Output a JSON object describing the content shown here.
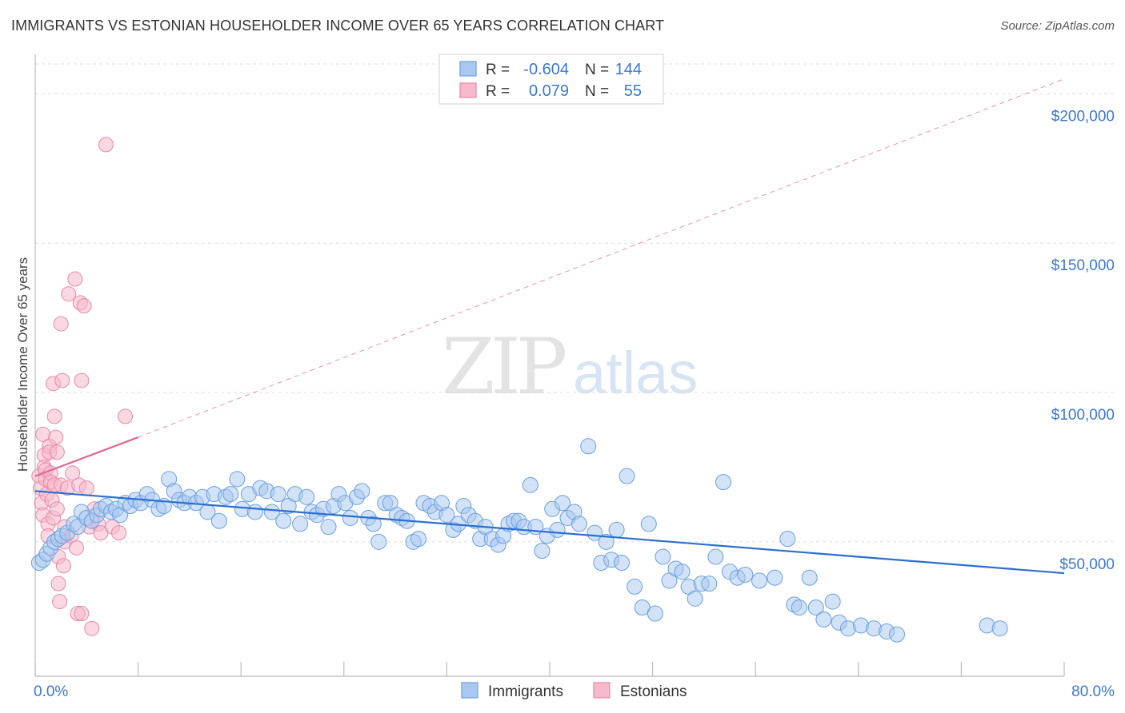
{
  "header": {
    "title": "IMMIGRANTS VS ESTONIAN HOUSEHOLDER INCOME OVER 65 YEARS CORRELATION CHART",
    "source": "Source: ZipAtlas.com"
  },
  "watermark": {
    "zip": "ZIP",
    "atlas": "atlas"
  },
  "legend_box": {
    "rows": [
      {
        "r_label": "R =",
        "r_value": "-0.604",
        "n_label": "N =",
        "n_value": "144"
      },
      {
        "r_label": "R =",
        "r_value": "0.079",
        "n_label": "N =",
        "n_value": "55"
      }
    ]
  },
  "bottom_legend": {
    "items": [
      "Immigrants",
      "Estonians"
    ]
  },
  "colors": {
    "immigrants_fill": "#a8c8f0",
    "immigrants_stroke": "#6a9fe0",
    "immigrants_line": "#2a6fd0",
    "estonians_fill": "#f6b8cb",
    "estonians_stroke": "#e888a8",
    "estonians_line": "#e06690",
    "axis_text": "#3a78d0",
    "grid": "#dddddd"
  },
  "chart_data": {
    "type": "scatter",
    "title": "IMMIGRANTS VS ESTONIAN HOUSEHOLDER INCOME OVER 65 YEARS CORRELATION CHART",
    "xlabel": "",
    "ylabel": "Householder Income Over 65 years",
    "xlim": [
      0,
      80
    ],
    "ylim": [
      5000,
      210000
    ],
    "x_tick_labels": [
      "0.0%",
      "80.0%"
    ],
    "y_ticks": [
      50000,
      100000,
      150000,
      200000
    ],
    "y_tick_labels": [
      "$50,000",
      "$100,000",
      "$150,000",
      "$200,000"
    ],
    "grid": true,
    "legend_position": "top-center",
    "series": [
      {
        "name": "Immigrants",
        "R": -0.604,
        "N": 144,
        "trend": {
          "x": [
            0,
            80
          ],
          "y": [
            67000,
            39500
          ]
        },
        "points": [
          [
            0.3,
            43000
          ],
          [
            0.6,
            44000
          ],
          [
            0.9,
            46000
          ],
          [
            1.2,
            48000
          ],
          [
            1.5,
            50000
          ],
          [
            1.8,
            51000
          ],
          [
            2.1,
            52000
          ],
          [
            2.5,
            53000
          ],
          [
            3.0,
            56000
          ],
          [
            3.3,
            55000
          ],
          [
            3.6,
            60000
          ],
          [
            4.0,
            58000
          ],
          [
            4.4,
            57000
          ],
          [
            4.8,
            59000
          ],
          [
            5.1,
            61000
          ],
          [
            5.5,
            62000
          ],
          [
            5.9,
            60000
          ],
          [
            6.3,
            61000
          ],
          [
            6.6,
            59000
          ],
          [
            7.0,
            63000
          ],
          [
            7.4,
            62000
          ],
          [
            7.8,
            64000
          ],
          [
            8.2,
            63000
          ],
          [
            8.7,
            66000
          ],
          [
            9.1,
            64000
          ],
          [
            9.6,
            61000
          ],
          [
            10.0,
            62000
          ],
          [
            10.4,
            71000
          ],
          [
            10.8,
            67000
          ],
          [
            11.2,
            64000
          ],
          [
            11.6,
            63000
          ],
          [
            12.0,
            65000
          ],
          [
            12.5,
            63000
          ],
          [
            13.0,
            65000
          ],
          [
            13.4,
            60000
          ],
          [
            13.9,
            66000
          ],
          [
            14.3,
            57000
          ],
          [
            14.8,
            65000
          ],
          [
            15.2,
            66000
          ],
          [
            15.7,
            71000
          ],
          [
            16.1,
            61000
          ],
          [
            16.6,
            66000
          ],
          [
            17.1,
            60000
          ],
          [
            17.5,
            68000
          ],
          [
            18.0,
            67000
          ],
          [
            18.4,
            60000
          ],
          [
            18.9,
            66000
          ],
          [
            19.3,
            57000
          ],
          [
            19.7,
            62000
          ],
          [
            20.2,
            66000
          ],
          [
            20.6,
            56000
          ],
          [
            21.1,
            65000
          ],
          [
            21.5,
            60000
          ],
          [
            21.9,
            59000
          ],
          [
            22.4,
            61000
          ],
          [
            22.8,
            55000
          ],
          [
            23.2,
            62000
          ],
          [
            23.6,
            66000
          ],
          [
            24.1,
            63000
          ],
          [
            24.5,
            58000
          ],
          [
            25.0,
            65000
          ],
          [
            25.4,
            67000
          ],
          [
            25.9,
            58000
          ],
          [
            26.3,
            56000
          ],
          [
            26.7,
            50000
          ],
          [
            27.2,
            63000
          ],
          [
            27.6,
            63000
          ],
          [
            28.1,
            59000
          ],
          [
            28.5,
            58000
          ],
          [
            28.9,
            57000
          ],
          [
            29.4,
            50000
          ],
          [
            29.8,
            51000
          ],
          [
            30.2,
            63000
          ],
          [
            30.7,
            62000
          ],
          [
            31.1,
            60000
          ],
          [
            31.6,
            63000
          ],
          [
            32.0,
            59000
          ],
          [
            32.5,
            54000
          ],
          [
            32.9,
            56000
          ],
          [
            33.3,
            62000
          ],
          [
            33.7,
            59000
          ],
          [
            34.2,
            57000
          ],
          [
            34.6,
            51000
          ],
          [
            35.0,
            55000
          ],
          [
            35.5,
            51000
          ],
          [
            36.0,
            49000
          ],
          [
            36.4,
            52000
          ],
          [
            36.8,
            56000
          ],
          [
            37.2,
            57000
          ],
          [
            37.6,
            57000
          ],
          [
            38.0,
            55000
          ],
          [
            38.5,
            69000
          ],
          [
            38.9,
            55000
          ],
          [
            39.4,
            47000
          ],
          [
            39.8,
            52000
          ],
          [
            40.2,
            61000
          ],
          [
            40.6,
            54000
          ],
          [
            41.0,
            63000
          ],
          [
            41.4,
            58000
          ],
          [
            41.9,
            60000
          ],
          [
            42.3,
            56000
          ],
          [
            43.0,
            82000
          ],
          [
            43.5,
            53000
          ],
          [
            44.0,
            43000
          ],
          [
            44.4,
            50000
          ],
          [
            44.8,
            44000
          ],
          [
            45.2,
            54000
          ],
          [
            45.6,
            43000
          ],
          [
            46.0,
            72000
          ],
          [
            46.6,
            35000
          ],
          [
            47.2,
            28000
          ],
          [
            47.7,
            56000
          ],
          [
            48.2,
            26000
          ],
          [
            48.8,
            45000
          ],
          [
            49.3,
            37000
          ],
          [
            49.8,
            41000
          ],
          [
            50.3,
            40000
          ],
          [
            50.8,
            35000
          ],
          [
            51.3,
            31000
          ],
          [
            51.8,
            36000
          ],
          [
            52.4,
            36000
          ],
          [
            52.9,
            45000
          ],
          [
            53.5,
            70000
          ],
          [
            54.0,
            40000
          ],
          [
            54.6,
            38000
          ],
          [
            55.2,
            39000
          ],
          [
            56.3,
            37000
          ],
          [
            57.5,
            38000
          ],
          [
            58.5,
            51000
          ],
          [
            59.0,
            29000
          ],
          [
            59.4,
            28000
          ],
          [
            60.2,
            38000
          ],
          [
            60.7,
            28000
          ],
          [
            61.3,
            24000
          ],
          [
            62.0,
            30000
          ],
          [
            62.5,
            23000
          ],
          [
            63.2,
            21000
          ],
          [
            64.2,
            22000
          ],
          [
            65.2,
            21000
          ],
          [
            66.2,
            20000
          ],
          [
            67.0,
            19000
          ],
          [
            74.0,
            22000
          ],
          [
            75.0,
            21000
          ]
        ]
      },
      {
        "name": "Estonians",
        "R": 0.079,
        "N": 55,
        "trend": {
          "x": [
            0,
            8
          ],
          "y": [
            72000,
            85000
          ]
        },
        "trend_dashed": {
          "x": [
            8,
            80
          ],
          "y": [
            85000,
            205000
          ]
        },
        "points": [
          [
            0.3,
            72000
          ],
          [
            0.4,
            68000
          ],
          [
            0.5,
            63000
          ],
          [
            0.6,
            59000
          ],
          [
            0.6,
            86000
          ],
          [
            0.7,
            79000
          ],
          [
            0.7,
            75000
          ],
          [
            0.8,
            74000
          ],
          [
            0.8,
            71000
          ],
          [
            0.9,
            66000
          ],
          [
            1.0,
            56000
          ],
          [
            1.0,
            52000
          ],
          [
            1.1,
            82000
          ],
          [
            1.1,
            80000
          ],
          [
            1.2,
            73000
          ],
          [
            1.2,
            70000
          ],
          [
            1.3,
            64000
          ],
          [
            1.4,
            58000
          ],
          [
            1.4,
            103000
          ],
          [
            1.5,
            69000
          ],
          [
            1.5,
            92000
          ],
          [
            1.6,
            85000
          ],
          [
            1.7,
            80000
          ],
          [
            1.7,
            61000
          ],
          [
            1.8,
            45000
          ],
          [
            1.8,
            36000
          ],
          [
            1.9,
            30000
          ],
          [
            2.0,
            123000
          ],
          [
            2.0,
            69000
          ],
          [
            2.1,
            104000
          ],
          [
            2.2,
            42000
          ],
          [
            2.3,
            50000
          ],
          [
            2.3,
            55000
          ],
          [
            2.5,
            68000
          ],
          [
            2.6,
            133000
          ],
          [
            2.8,
            52000
          ],
          [
            2.9,
            73000
          ],
          [
            3.1,
            138000
          ],
          [
            3.2,
            48000
          ],
          [
            3.3,
            26000
          ],
          [
            3.4,
            69000
          ],
          [
            3.5,
            130000
          ],
          [
            3.6,
            104000
          ],
          [
            3.6,
            26000
          ],
          [
            3.8,
            129000
          ],
          [
            4.0,
            68000
          ],
          [
            4.2,
            55000
          ],
          [
            4.4,
            21000
          ],
          [
            4.6,
            61000
          ],
          [
            4.9,
            56000
          ],
          [
            5.1,
            53000
          ],
          [
            5.5,
            183000
          ],
          [
            6.0,
            55000
          ],
          [
            6.5,
            53000
          ],
          [
            7.0,
            92000
          ]
        ]
      }
    ]
  }
}
